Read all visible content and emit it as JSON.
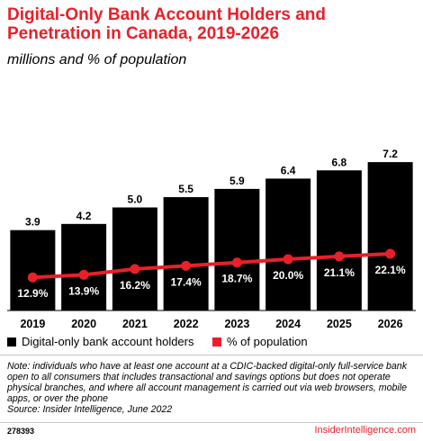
{
  "header": {
    "title": "Digital-Only Bank Account Holders and Penetration in Canada, 2019-2026",
    "subtitle": "millions and % of population"
  },
  "chart_data": {
    "type": "bar",
    "categories": [
      "2019",
      "2020",
      "2021",
      "2022",
      "2023",
      "2024",
      "2025",
      "2026"
    ],
    "series": [
      {
        "name": "Digital-only bank account holders",
        "type": "bar",
        "values": [
          3.9,
          4.2,
          5.0,
          5.5,
          5.9,
          6.4,
          6.8,
          7.2
        ],
        "labels": [
          "3.9",
          "4.2",
          "5.0",
          "5.5",
          "5.9",
          "6.4",
          "6.8",
          "7.2"
        ],
        "color": "#000000"
      },
      {
        "name": "% of population",
        "type": "line",
        "values": [
          12.9,
          13.9,
          16.2,
          17.4,
          18.7,
          20.0,
          21.1,
          22.1
        ],
        "labels": [
          "12.9%",
          "13.9%",
          "16.2%",
          "17.4%",
          "18.7%",
          "20.0%",
          "21.1%",
          "22.1%"
        ],
        "color": "#e8202a"
      }
    ],
    "legend_position": "bottom-left",
    "grid": false
  },
  "footer": {
    "note": "Note: individuals who have at least one account at a CDIC-backed digital-only full-service bank open to all consumers that includes transactional and savings options but does not operate physical branches, and where all account management is carried out via web browsers, mobile apps, or over the phone",
    "source": "Source: Insider Intelligence, June 2022",
    "chart_id": "278393",
    "brand": "InsiderIntelligence.com"
  }
}
